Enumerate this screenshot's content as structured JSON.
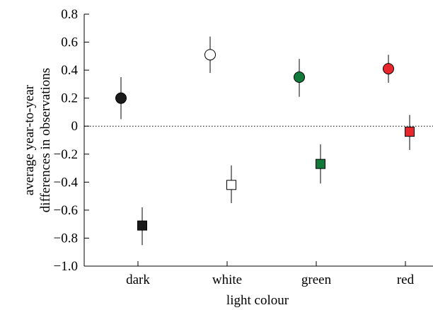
{
  "chart_data": {
    "type": "scatter",
    "title": "",
    "xlabel": "light colour",
    "ylabel": [
      "average year-to-year",
      "differences in observations"
    ],
    "categories": [
      "dark",
      "white",
      "green",
      "red"
    ],
    "ylim": [
      -1.0,
      0.8
    ],
    "yticks": [
      0.8,
      0.6,
      0.4,
      0.2,
      0,
      -0.2,
      -0.4,
      -0.6,
      -0.8,
      -1.0
    ],
    "ytick_labels": [
      "0.8",
      "0.6",
      "0.4",
      "0.2",
      "0",
      "−0.2",
      "−0.4",
      "−0.6",
      "−0.8",
      "−1.0"
    ],
    "reference_line": {
      "y": 0,
      "style": "dotted"
    },
    "grid": false,
    "legend": "none",
    "series": [
      {
        "marker": "circle",
        "points": [
          {
            "category": "dark",
            "value": 0.2,
            "low": 0.05,
            "high": 0.35,
            "fill": "#1a1a1a"
          },
          {
            "category": "white",
            "value": 0.51,
            "low": 0.38,
            "high": 0.64,
            "fill": "#ffffff"
          },
          {
            "category": "green",
            "value": 0.35,
            "low": 0.21,
            "high": 0.48,
            "fill": "#117a3a"
          },
          {
            "category": "red",
            "value": 0.41,
            "low": 0.31,
            "high": 0.51,
            "fill": "#e8262b"
          }
        ]
      },
      {
        "marker": "square",
        "points": [
          {
            "category": "dark",
            "value": -0.71,
            "low": -0.85,
            "high": -0.58,
            "fill": "#1a1a1a"
          },
          {
            "category": "white",
            "value": -0.42,
            "low": -0.55,
            "high": -0.28,
            "fill": "#ffffff"
          },
          {
            "category": "green",
            "value": -0.27,
            "low": -0.41,
            "high": -0.13,
            "fill": "#117a3a"
          },
          {
            "category": "red",
            "value": -0.04,
            "low": -0.17,
            "high": 0.08,
            "fill": "#e8262b"
          }
        ]
      }
    ]
  }
}
